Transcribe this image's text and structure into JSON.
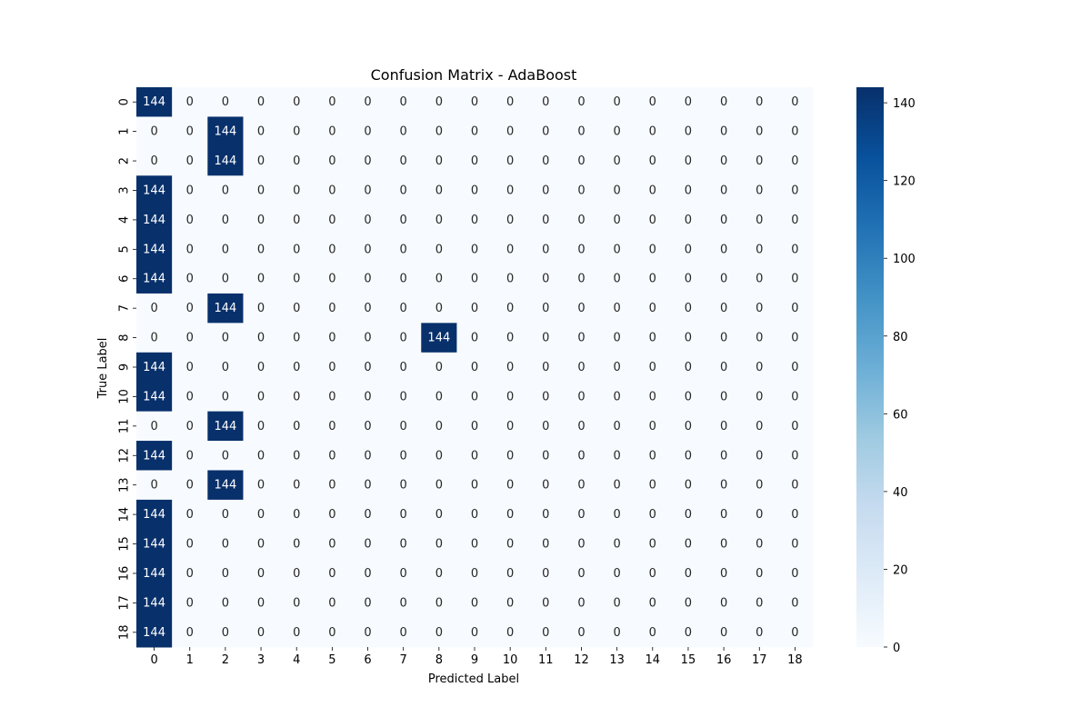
{
  "chart_data": {
    "type": "heatmap",
    "title": "Confusion Matrix - AdaBoost",
    "xlabel": "Predicted Label",
    "ylabel": "True Label",
    "x_categories": [
      "0",
      "1",
      "2",
      "3",
      "4",
      "5",
      "6",
      "7",
      "8",
      "9",
      "10",
      "11",
      "12",
      "13",
      "14",
      "15",
      "16",
      "17",
      "18"
    ],
    "y_categories": [
      "0",
      "1",
      "2",
      "3",
      "4",
      "5",
      "6",
      "7",
      "8",
      "9",
      "10",
      "11",
      "12",
      "13",
      "14",
      "15",
      "16",
      "17",
      "18"
    ],
    "predicted_index_by_true_label": [
      0,
      2,
      2,
      0,
      0,
      0,
      0,
      2,
      8,
      0,
      0,
      2,
      0,
      2,
      0,
      0,
      0,
      0,
      0
    ],
    "support_per_true_label": 144,
    "colormap": "Blues",
    "color_range": [
      0,
      144
    ],
    "colorbar_ticks": [
      0,
      20,
      40,
      60,
      80,
      100,
      120,
      140
    ],
    "annotations": true,
    "colors": {
      "low": "#f7fbff",
      "high": "#08306b",
      "text_dark": "#262626",
      "text_light": "#ffffff"
    }
  }
}
